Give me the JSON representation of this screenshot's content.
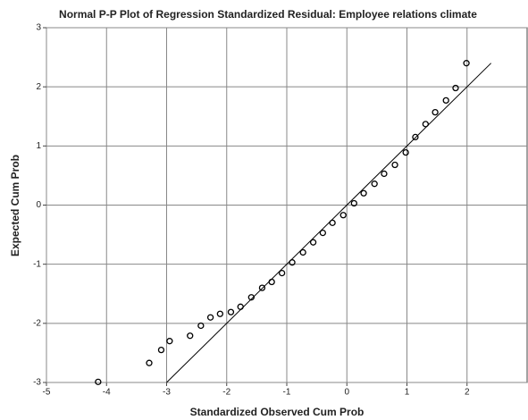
{
  "chart_data": {
    "type": "scatter",
    "title": "Normal P-P Plot of Regression Standardized Residual: Employee relations climate",
    "x_label": "Standardized Observed Cum Prob",
    "y_label": "Expected Cum Prob",
    "x": [
      -4.14,
      -3.29,
      -3.09,
      -2.95,
      -2.61,
      -2.43,
      -2.27,
      -2.11,
      -1.93,
      -1.77,
      -1.59,
      -1.41,
      -1.25,
      -1.08,
      -0.91,
      -0.73,
      -0.56,
      -0.4,
      -0.24,
      -0.06,
      0.12,
      0.28,
      0.46,
      0.62,
      0.8,
      0.98,
      1.14,
      1.31,
      1.47,
      1.65,
      1.81,
      1.99
    ],
    "values": [
      -2.99,
      -2.67,
      -2.45,
      -2.3,
      -2.21,
      -2.04,
      -1.9,
      -1.84,
      -1.81,
      -1.72,
      -1.56,
      -1.4,
      -1.3,
      -1.15,
      -0.97,
      -0.8,
      -0.63,
      -0.47,
      -0.3,
      -0.17,
      0.03,
      0.2,
      0.36,
      0.53,
      0.68,
      0.89,
      1.15,
      1.37,
      1.57,
      1.77,
      1.98,
      2.4
    ],
    "color": "#000000",
    "reference_line": {
      "x": [
        -3,
        2.4
      ],
      "y": [
        -3,
        2.4
      ],
      "color": "#000000"
    },
    "xlim": [
      -5,
      3
    ],
    "xticks": [
      -5,
      -4,
      -3,
      -2,
      -1,
      0,
      1,
      2
    ],
    "ylim": [
      -3,
      3
    ],
    "yticks": [
      -3,
      -2,
      -1,
      0,
      1,
      2,
      3
    ],
    "grid": true
  }
}
